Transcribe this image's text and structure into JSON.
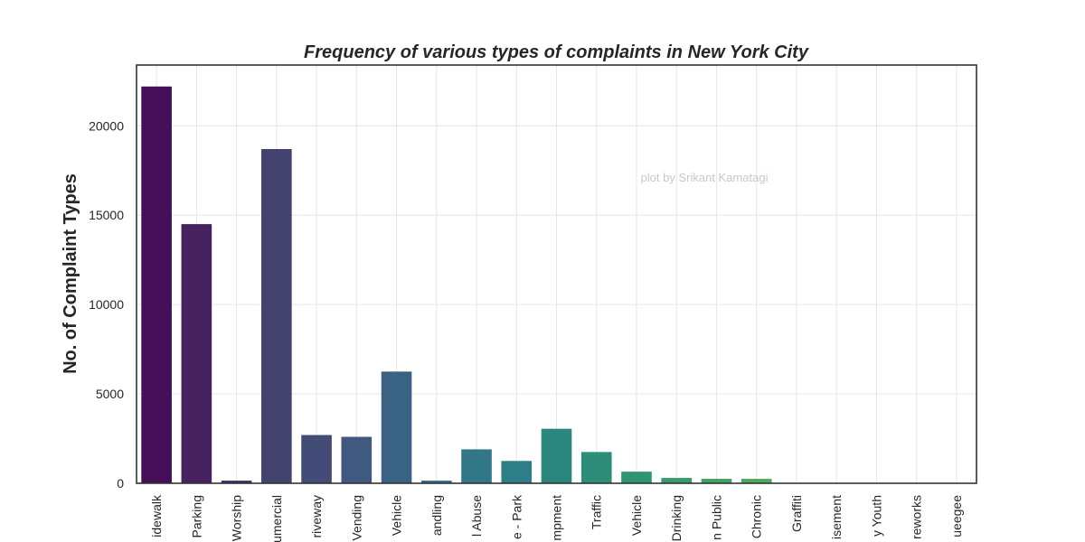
{
  "chart_data": {
    "type": "bar",
    "title": "Frequency of various types of complaints in New York City",
    "ylabel": "No. of Complaint Types",
    "xlabel": "",
    "categories": [
      "idewalk",
      "Parking",
      "Worship",
      "umercial",
      "riveway",
      "Vending",
      "Vehicle",
      "andling",
      "l Abuse",
      "e - Park",
      "mpment",
      "Traffic",
      "Vehicle",
      "Drinking",
      "n Public",
      "Chronic",
      "Graffiti",
      "isement",
      "y Youth",
      "reworks",
      "ueegee"
    ],
    "values": [
      22200,
      14500,
      150,
      18700,
      2700,
      2600,
      6250,
      150,
      1900,
      1250,
      3050,
      1750,
      650,
      300,
      250,
      250,
      20,
      10,
      10,
      10,
      5
    ],
    "ylim": [
      0,
      23400
    ],
    "yticks": [
      0,
      5000,
      10000,
      15000,
      20000
    ],
    "ytick_labels": [
      "0",
      "5000",
      "10000",
      "15000",
      "20000"
    ],
    "grid": true,
    "palette": "viridis",
    "colors": [
      "#440f57",
      "#46225f",
      "#453265",
      "#44426e",
      "#434c76",
      "#3f5a7e",
      "#3a6383",
      "#357088",
      "#317787",
      "#2d7e87",
      "#2b8680",
      "#2c8d79",
      "#2f9570",
      "#389c6a",
      "#42a163",
      "#4fa85c",
      "#5caf57",
      "#6ab753",
      "#7abd4f",
      "#8ac34a",
      "#9bc947"
    ],
    "annotation": "plot by Srikant Kamatagi"
  }
}
